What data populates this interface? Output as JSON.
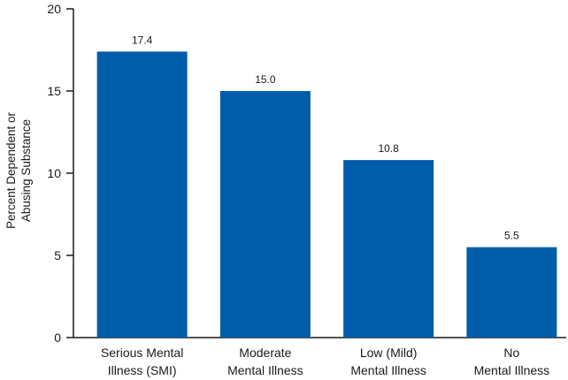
{
  "chart_data": {
    "type": "bar",
    "title": "",
    "xlabel": "",
    "ylabel_lines": [
      "Percent Dependent or",
      "Abusing Substance"
    ],
    "ylim": [
      0,
      20
    ],
    "yticks": [
      0,
      5,
      10,
      15,
      20
    ],
    "categories": [
      [
        "Serious Mental",
        "Illness (SMI)"
      ],
      [
        "Moderate",
        "Mental Illness"
      ],
      [
        "Low (Mild)",
        "Mental Illness"
      ],
      [
        "No",
        "Mental Illness"
      ]
    ],
    "values": [
      17.4,
      15.0,
      10.8,
      5.5
    ],
    "value_labels": [
      "17.4",
      "15.0",
      "10.8",
      "5.5"
    ],
    "bar_color": "#005daa",
    "grid": false,
    "legend": "none"
  }
}
